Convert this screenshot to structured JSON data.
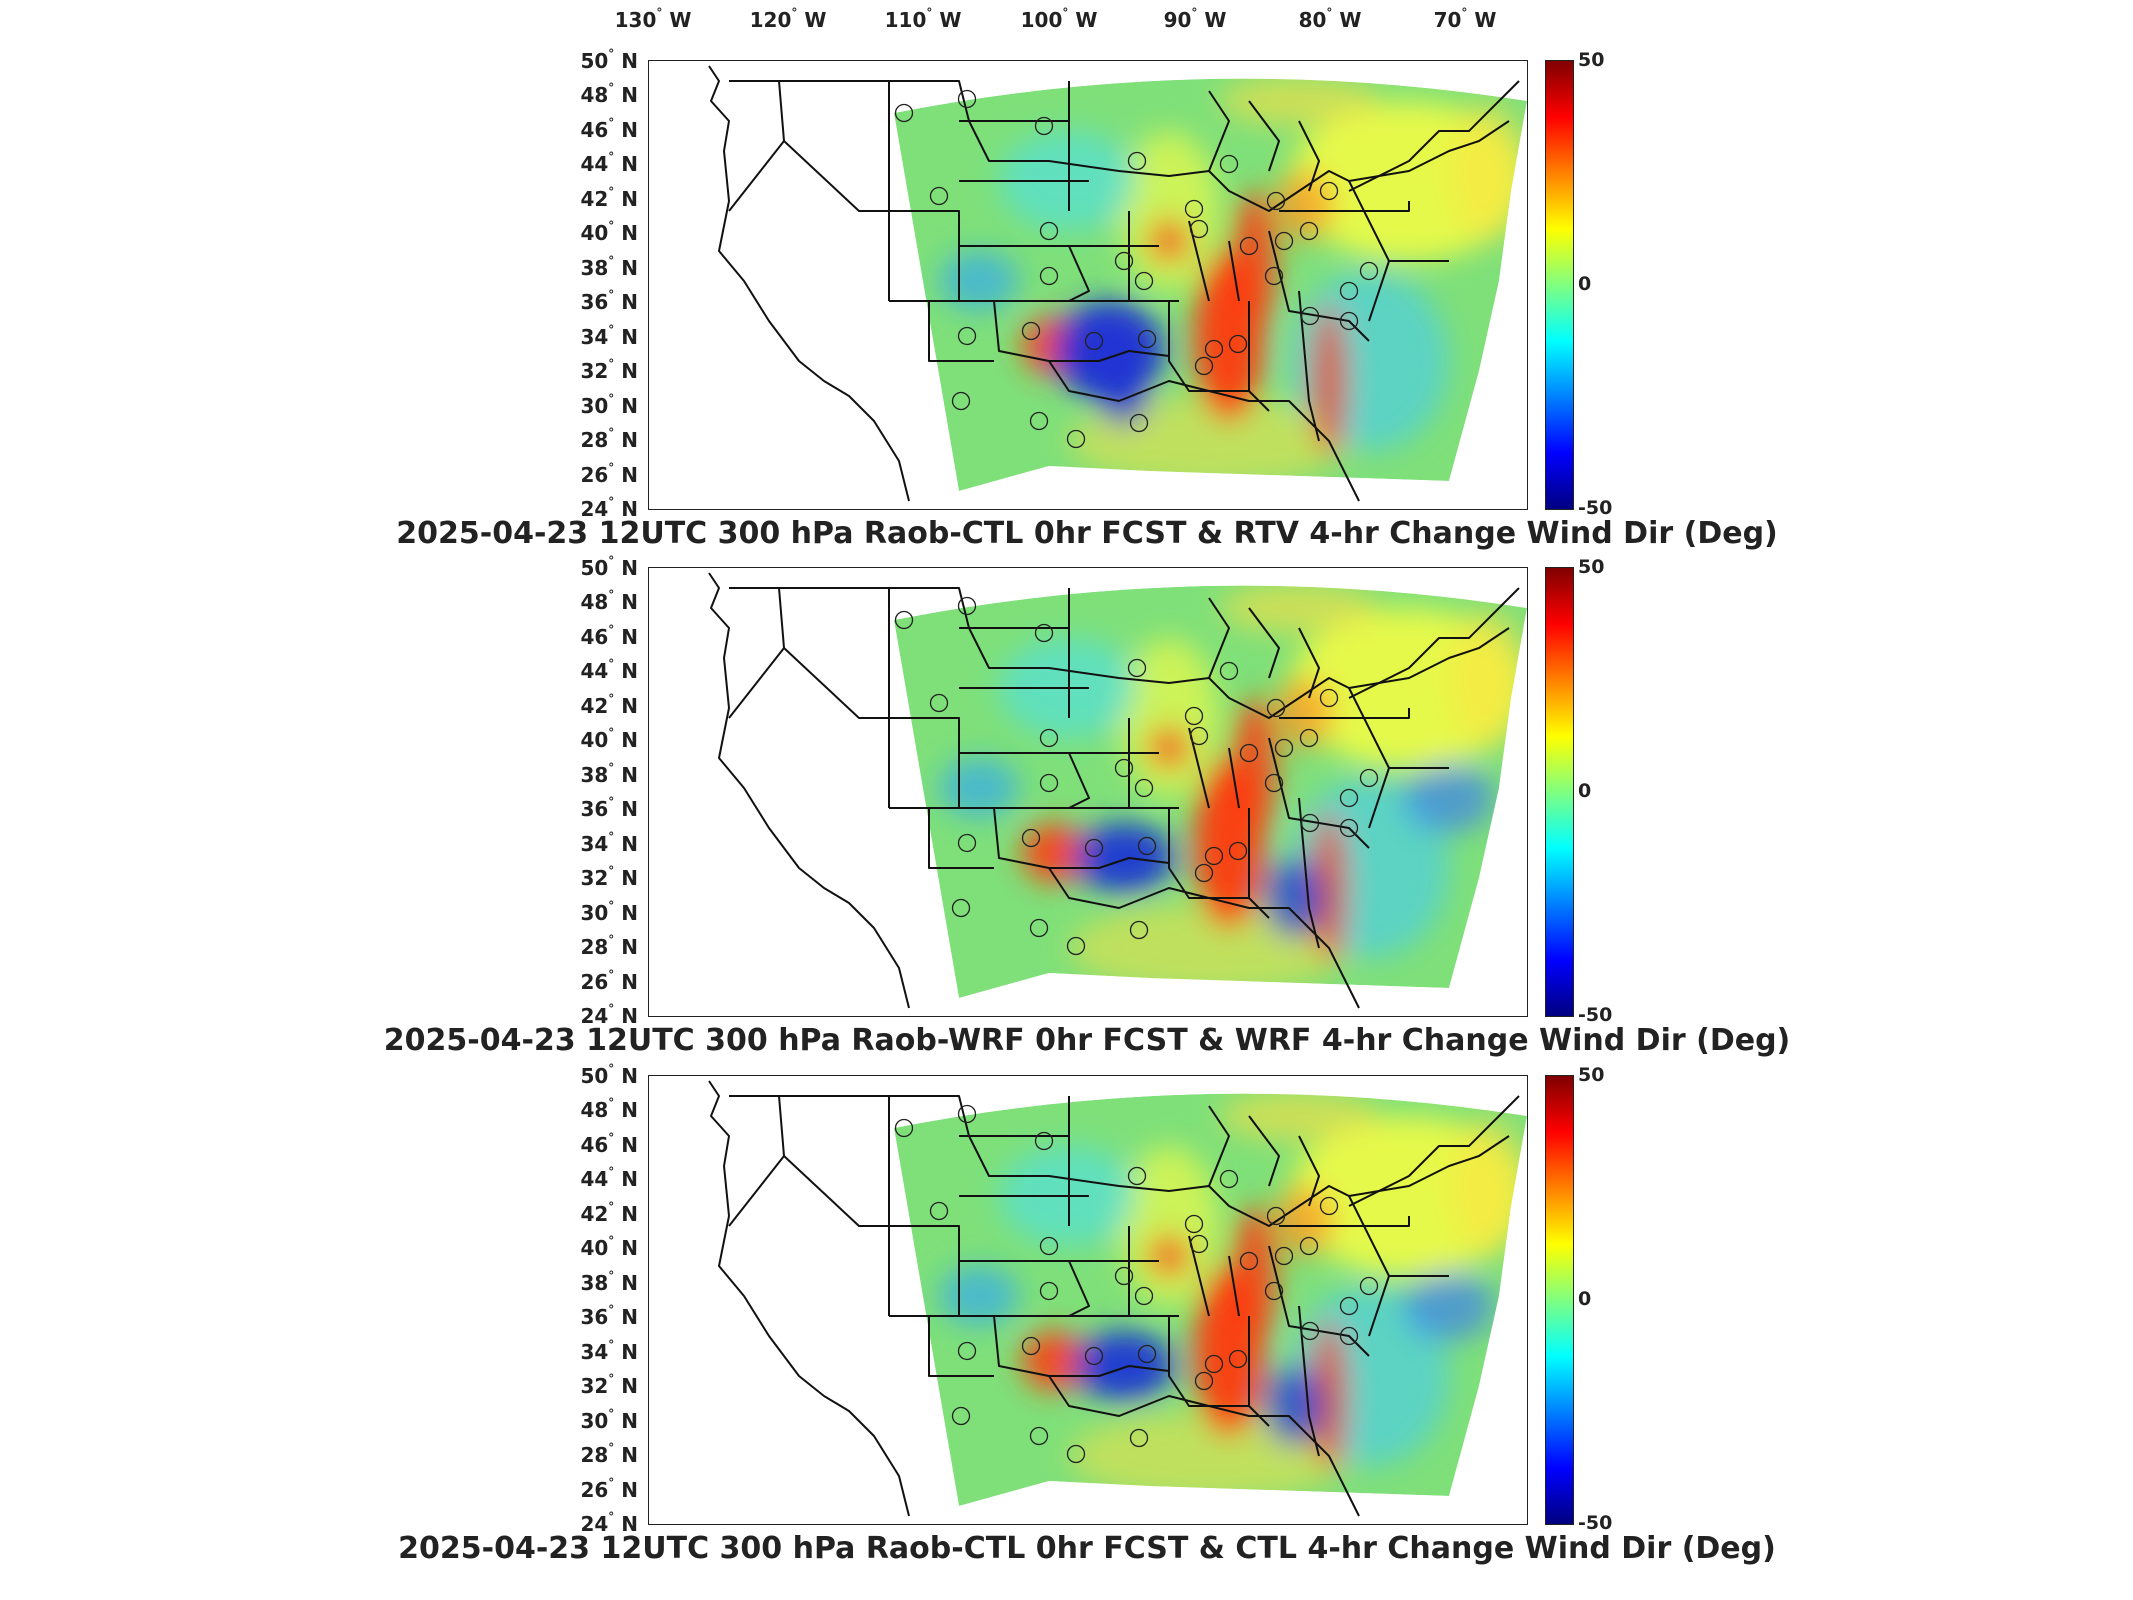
{
  "lon_labels": [
    "130",
    "120",
    "110",
    "100",
    "90",
    "80",
    "70"
  ],
  "lon_suffix": "W",
  "lat_labels": [
    "50",
    "48",
    "46",
    "44",
    "42",
    "40",
    "38",
    "36",
    "34",
    "32",
    "30",
    "28",
    "26",
    "24"
  ],
  "lat_suffix": "N",
  "colorbar": {
    "ticks": [
      "50",
      "0",
      "-50"
    ],
    "colors": [
      "#800000",
      "#ff0000",
      "#ff8000",
      "#ffff00",
      "#80ff80",
      "#00ffff",
      "#0080ff",
      "#0000ff",
      "#000080"
    ]
  },
  "panels": [
    {
      "title": "2025-04-23 12UTC 300 hPa Raob-CTL 0hr FCST & RTV 4-hr Change Wind Dir (Deg)"
    },
    {
      "title": "2025-04-23 12UTC 300 hPa Raob-WRF 0hr FCST & WRF 4-hr Change Wind Dir (Deg)"
    },
    {
      "title": "2025-04-23 12UTC 300 hPa Raob-CTL 0hr FCST & CTL 4-hr Change Wind Dir (Deg)"
    }
  ],
  "map_colors": {
    "background_field": "#7fe07a",
    "positive": "#ff3a10",
    "negative": "#1a2dd8",
    "land_outline": "#111111"
  }
}
